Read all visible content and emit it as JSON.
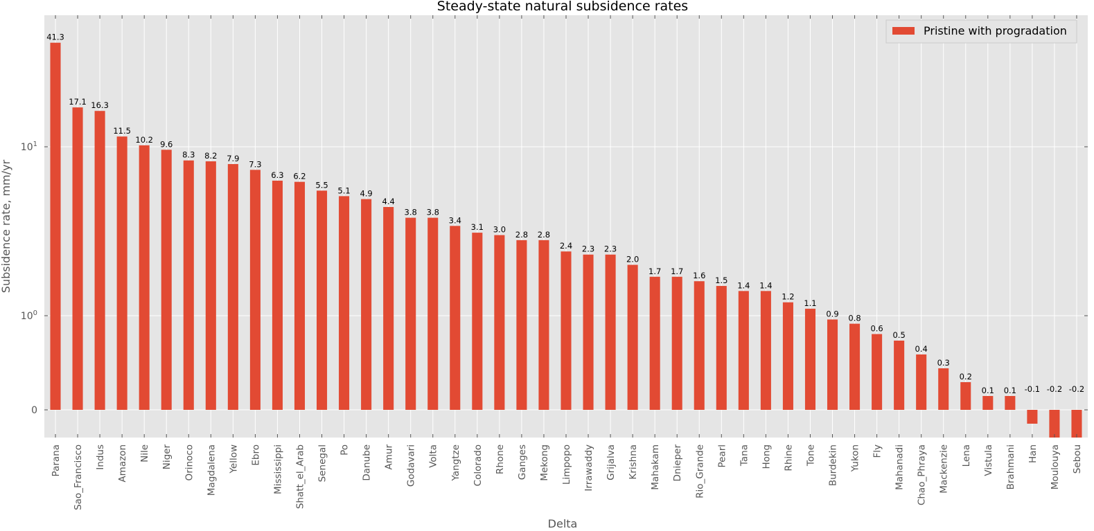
{
  "chart_data": {
    "type": "bar",
    "title": "Steady-state natural subsidence rates",
    "xlabel": "Delta",
    "ylabel": "Subsidence rate, mm/yr",
    "yscale": "symlog",
    "linthresh": 0.5,
    "ylim": [
      -0.3,
      60
    ],
    "grid": true,
    "legend_position": "top-right",
    "bar_color": "#E24A33",
    "background_color": "#E5E5E5",
    "y_ticks": [
      {
        "value": 0,
        "base": "0",
        "exp": ""
      },
      {
        "value": 1,
        "base": "10",
        "exp": "0"
      },
      {
        "value": 10,
        "base": "10",
        "exp": "1"
      }
    ],
    "categories": [
      "Parana",
      "Sao_Francisco",
      "Indus",
      "Amazon",
      "Nile",
      "Niger",
      "Orinoco",
      "Magdalena",
      "Yellow",
      "Ebro",
      "Mississippi",
      "Shatt_el_Arab",
      "Senegal",
      "Po",
      "Danube",
      "Amur",
      "Godavari",
      "Volta",
      "Yangtze",
      "Colorado",
      "Rhone",
      "Ganges",
      "Mekong",
      "Limpopo",
      "Irrawaddy",
      "Grijalva",
      "Krishna",
      "Mahakam",
      "Dnieper",
      "Rio_Grande",
      "Pearl",
      "Tana",
      "Hong",
      "Rhine",
      "Tone",
      "Burdekin",
      "Yukon",
      "Fly",
      "Mahanadi",
      "Chao_Phraya",
      "Mackenzie",
      "Lena",
      "Vistula",
      "Brahmani",
      "Han",
      "Moulouya",
      "Sebou"
    ],
    "series": [
      {
        "name": "Pristine with progradation",
        "values": [
          41.3,
          17.1,
          16.3,
          11.5,
          10.2,
          9.6,
          8.3,
          8.2,
          7.9,
          7.3,
          6.3,
          6.2,
          5.5,
          5.1,
          4.9,
          4.4,
          3.8,
          3.8,
          3.4,
          3.1,
          3.0,
          2.8,
          2.8,
          2.4,
          2.3,
          2.3,
          2.0,
          1.7,
          1.7,
          1.6,
          1.5,
          1.4,
          1.4,
          1.2,
          1.1,
          0.9,
          0.8,
          0.6,
          0.5,
          0.4,
          0.3,
          0.2,
          0.1,
          0.1,
          -0.1,
          -0.2,
          -0.2
        ],
        "labels": [
          "41.3",
          "17.1",
          "16.3",
          "11.5",
          "10.2",
          "9.6",
          "8.3",
          "8.2",
          "7.9",
          "7.3",
          "6.3",
          "6.2",
          "5.5",
          "5.1",
          "4.9",
          "4.4",
          "3.8",
          "3.8",
          "3.4",
          "3.1",
          "3.0",
          "2.8",
          "2.8",
          "2.4",
          "2.3",
          "2.3",
          "2.0",
          "1.7",
          "1.7",
          "1.6",
          "1.5",
          "1.4",
          "1.4",
          "1.2",
          "1.1",
          "0.9",
          "0.8",
          "0.6",
          "0.5",
          "0.4",
          "0.3",
          "0.2",
          "0.1",
          "0.1",
          "-0.1",
          "-0.2",
          "-0.2"
        ]
      }
    ]
  }
}
